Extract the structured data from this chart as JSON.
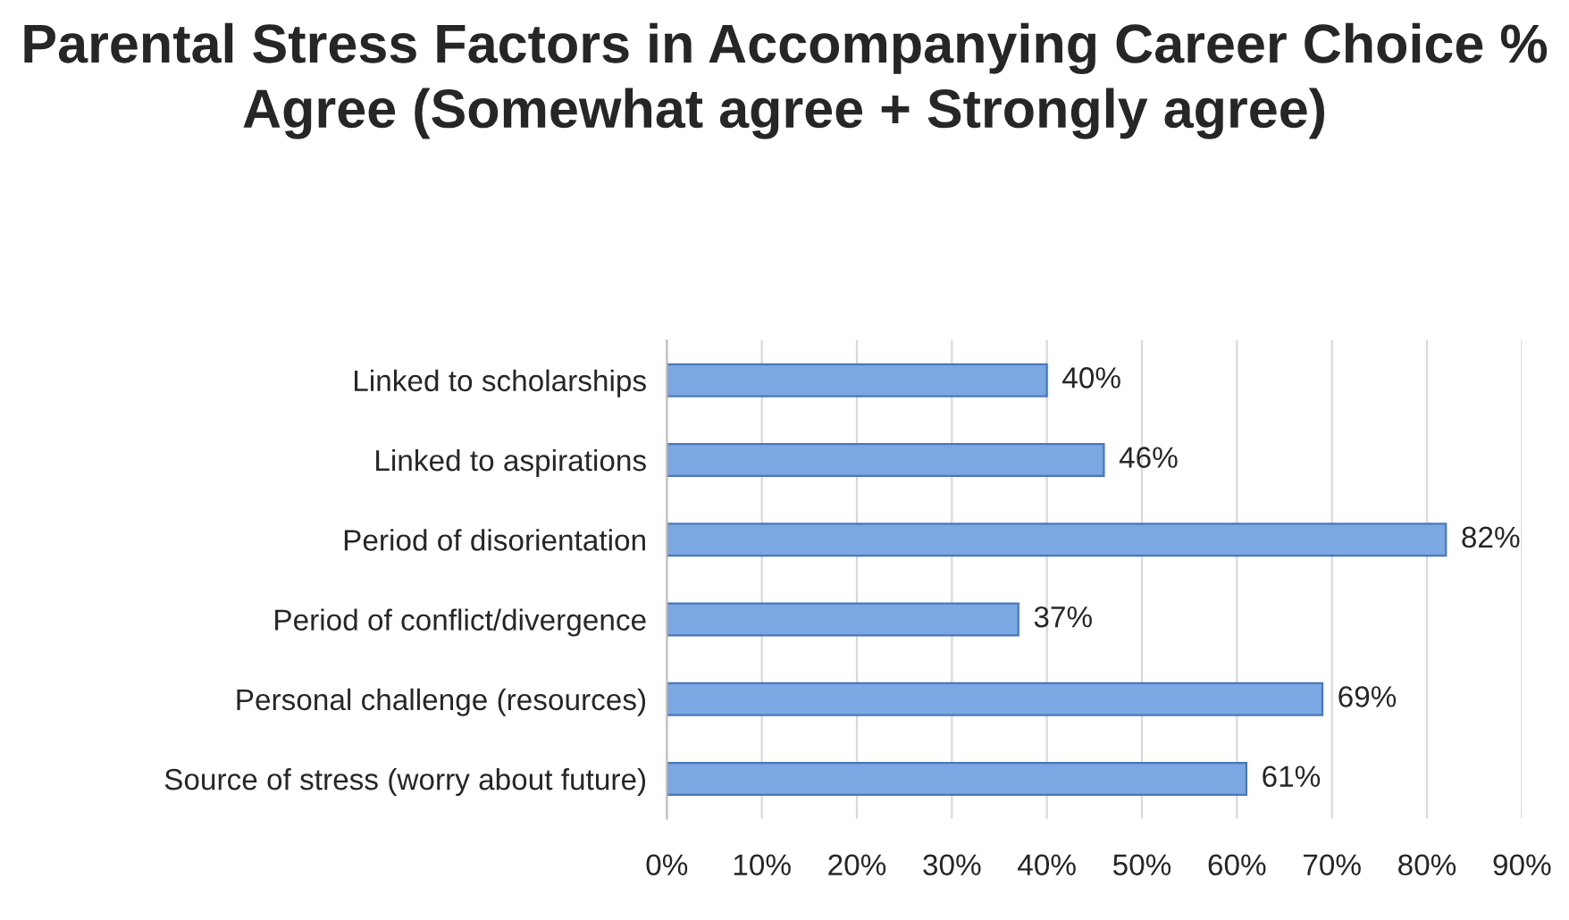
{
  "chart_data": {
    "type": "bar",
    "orientation": "horizontal",
    "title": "Parental Stress Factors in Accompanying Career Choice % Agree (Somewhat agree + Strongly agree)",
    "categories": [
      "Linked to scholarships",
      "Linked to aspirations",
      "Period of disorientation",
      "Period of conflict/divergence",
      "Personal challenge (resources)",
      "Source of stress (worry about future)"
    ],
    "values": [
      40,
      46,
      82,
      37,
      69,
      61
    ],
    "value_labels": [
      "40%",
      "46%",
      "82%",
      "37%",
      "69%",
      "61%"
    ],
    "color": "#7ba7e3",
    "xlim": [
      0,
      90
    ],
    "xticks": [
      {
        "value": 0,
        "label": "0%"
      },
      {
        "value": 10,
        "label": "10%"
      },
      {
        "value": 20,
        "label": "20%"
      },
      {
        "value": 30,
        "label": "30%"
      },
      {
        "value": 40,
        "label": "40%"
      },
      {
        "value": 50,
        "label": "50%"
      },
      {
        "value": 60,
        "label": "60%"
      },
      {
        "value": 70,
        "label": "70%"
      },
      {
        "value": 80,
        "label": "80%"
      },
      {
        "value": 90,
        "label": "90%"
      }
    ],
    "grid": "x",
    "legend": false
  }
}
